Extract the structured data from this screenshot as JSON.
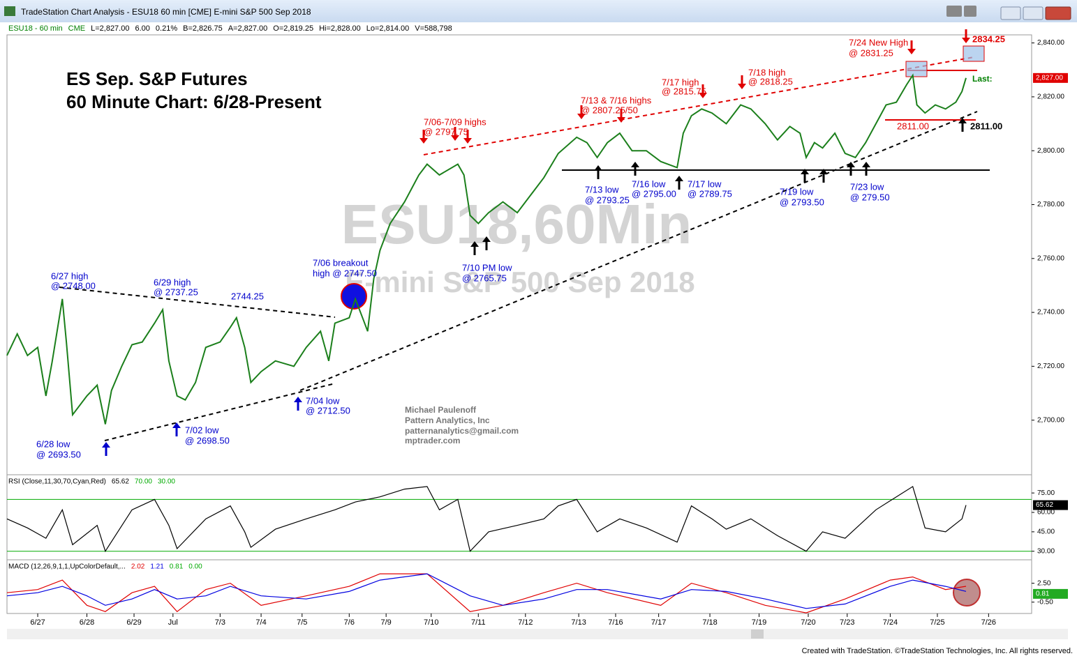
{
  "window": {
    "title": "TradeStation Chart Analysis - ESU18 60 min [CME] E-mini S&P 500 Sep 2018",
    "footer": "Created with TradeStation. ©TradeStation Technologies, Inc. All rights reserved."
  },
  "info_bar": [
    "ESU18 - 60 min",
    "CME",
    "L=2,827.00",
    "6.00",
    "0.21%",
    "B=2,826.75",
    "A=2,827.00",
    "O=2,819.25",
    "Hi=2,828.00",
    "Lo=2,814.00",
    "V=588,798"
  ],
  "watermark": [
    "ESU18,60Min",
    "E-mini S&P 500 Sep 2018"
  ],
  "chart_data": [
    {
      "type": "line",
      "color": "#1b7f1b",
      "annotations": [
        "ES Sep. S&P Futures",
        "60 Minute Chart: 6/28-Present",
        "6/27 high",
        "@ 2748.00",
        "6/28 low",
        "@ 2693.50",
        "6/29 high",
        "@ 2737.25",
        "2744.25",
        "7/02 low",
        "@ 2698.50",
        "7/04 low",
        "@ 2712.50",
        "7/06 breakout",
        "high @ 2747.50",
        "7/10 PM low",
        "@ 2765.75",
        "7/13 low",
        "@ 2793.25",
        "7/16 low",
        "@ 2795.00",
        "7/17 low",
        "@ 2789.75",
        "7/19 low",
        "@ 2793.50",
        "7/23 low",
        "@ 279.50",
        "7/06-7/09 highs",
        "@ 2797.75",
        "7/13 & 7/16 highs",
        "@ 2807.25/50",
        "7/17 high",
        "@ 2815.75",
        "7/18 high",
        "@ 2818.25",
        "7/24 New High",
        "@ 2831.25",
        "2834.25",
        "2811.00",
        "2811.00",
        "Last:",
        "Michael Paulenoff",
        "Pattern Analytics, Inc",
        "patternanalytics@gmail.com",
        "mptrader.com"
      ],
      "xlim": [
        0,
        500
      ],
      "ylim": [
        2680,
        2843
      ],
      "xticks": [
        {
          "value": 15,
          "label": "6/27"
        },
        {
          "value": 39,
          "label": "6/28"
        },
        {
          "value": 62,
          "label": "6/29"
        },
        {
          "value": 81,
          "label": "Jul"
        },
        {
          "value": 104,
          "label": "7/3"
        },
        {
          "value": 124,
          "label": "7/4"
        },
        {
          "value": 144,
          "label": "7/5"
        },
        {
          "value": 167,
          "label": "7/6"
        },
        {
          "value": 185,
          "label": "7/9"
        },
        {
          "value": 207,
          "label": "7/10"
        },
        {
          "value": 230,
          "label": "7/11"
        },
        {
          "value": 253,
          "label": "7/12"
        },
        {
          "value": 279,
          "label": "7/13"
        },
        {
          "value": 297,
          "label": "7/16"
        },
        {
          "value": 318,
          "label": "7/17"
        },
        {
          "value": 343,
          "label": "7/18"
        },
        {
          "value": 367,
          "label": "7/19"
        },
        {
          "value": 391,
          "label": "7/20"
        },
        {
          "value": 410,
          "label": "7/23"
        },
        {
          "value": 431,
          "label": "7/24"
        },
        {
          "value": 454,
          "label": "7/25"
        },
        {
          "value": 479,
          "label": "7/26"
        }
      ],
      "yticks": [
        {
          "value": 2700,
          "label": "2,700.00"
        },
        {
          "value": 2720,
          "label": "2,720.00"
        },
        {
          "value": 2740,
          "label": "2,740.00"
        },
        {
          "value": 2760,
          "label": "2,760.00"
        },
        {
          "value": 2780,
          "label": "2,780.00"
        },
        {
          "value": 2800,
          "label": "2,800.00"
        },
        {
          "value": 2820,
          "label": "2,820.00"
        },
        {
          "value": 2840,
          "label": "2,840.00"
        }
      ],
      "last": {
        "value": 2827,
        "label": "2,827.00",
        "color": "#e00000"
      },
      "series": [
        {
          "color": "#1b7f1b",
          "x": [
            0,
            5,
            10,
            15,
            19,
            22,
            27,
            29,
            32,
            39,
            44,
            48,
            51,
            56,
            61,
            66,
            72,
            76,
            79,
            83,
            87,
            92,
            97,
            104,
            109,
            112,
            116,
            119,
            124,
            131,
            140,
            146,
            153,
            157,
            160,
            167,
            170,
            174,
            176,
            179,
            182,
            187,
            194,
            201,
            205,
            211,
            220,
            223,
            226,
            230,
            235,
            242,
            249,
            255,
            262,
            269,
            278,
            283,
            288,
            293,
            299,
            305,
            312,
            319,
            327,
            330,
            334,
            339,
            344,
            351,
            358,
            363,
            370,
            376,
            382,
            387,
            390,
            394,
            398,
            404,
            409,
            414,
            419,
            424,
            429,
            434,
            439,
            442,
            444,
            448,
            453,
            458,
            463,
            466,
            468
          ],
          "values": [
            2724,
            2732,
            2724,
            2727,
            2709,
            2721.5,
            2745,
            2729,
            2702,
            2709,
            2713,
            2698.5,
            2711,
            2720,
            2728,
            2729,
            2736,
            2741,
            2722,
            2709,
            2707.5,
            2714,
            2727,
            2729,
            2734.5,
            2738,
            2727,
            2714,
            2718,
            2722,
            2720,
            2727,
            2733,
            2722,
            2736,
            2738,
            2745,
            2737,
            2733,
            2752.5,
            2763,
            2773,
            2781,
            2791,
            2795,
            2791,
            2795,
            2791,
            2776,
            2773,
            2777,
            2781,
            2777,
            2783,
            2790,
            2799,
            2805,
            2803,
            2797.5,
            2803,
            2806.5,
            2800,
            2800,
            2796,
            2793.75,
            2806.5,
            2813,
            2815.5,
            2814,
            2810,
            2817,
            2815.5,
            2810,
            2804,
            2809,
            2806.5,
            2797.5,
            2803,
            2801,
            2806.5,
            2799,
            2797.5,
            2803,
            2810,
            2817,
            2818,
            2824.5,
            2828,
            2817,
            2814,
            2817,
            2815.5,
            2818,
            2822,
            2827
          ]
        }
      ]
    },
    {
      "type": "line",
      "xlim": [
        0,
        500
      ],
      "ylim": [
        25,
        88
      ],
      "legend": [
        {
          "text": "RSI (Close,11,30,70,Cyan,Red)",
          "color": "#000000"
        },
        {
          "text": "65.62",
          "color": "#000000"
        },
        {
          "text": "70.00",
          "color": "#00aa00"
        },
        {
          "text": "30.00",
          "color": "#00aa00"
        }
      ],
      "yticks": [
        {
          "value": 30,
          "label": "30.00"
        },
        {
          "value": 45,
          "label": "45.00"
        },
        {
          "value": 60,
          "label": "60.00"
        },
        {
          "value": 75,
          "label": "75.00"
        }
      ],
      "levels": [
        {
          "value": 70,
          "color": "#00aa00"
        },
        {
          "value": 30,
          "color": "#00aa00"
        }
      ],
      "last": {
        "value": 65.62,
        "label": "65.62",
        "color": "#000000"
      },
      "series": [
        {
          "color": "#000000",
          "x": [
            0,
            10,
            19,
            27,
            32,
            44,
            48,
            61,
            72,
            79,
            83,
            97,
            109,
            116,
            119,
            131,
            146,
            160,
            170,
            182,
            194,
            205,
            211,
            220,
            226,
            235,
            249,
            262,
            269,
            278,
            288,
            299,
            312,
            327,
            334,
            344,
            351,
            363,
            376,
            390,
            398,
            409,
            424,
            434,
            442,
            448,
            458,
            466,
            468
          ],
          "values": [
            55,
            48,
            40,
            62,
            35,
            50,
            30,
            62,
            70,
            50,
            32,
            55,
            65,
            45,
            33,
            47,
            55,
            62,
            68,
            72,
            78,
            80,
            62,
            70,
            30,
            45,
            50,
            55,
            65,
            70,
            45,
            55,
            48,
            37,
            65,
            55,
            47,
            55,
            42,
            30,
            45,
            40,
            62,
            72,
            80,
            48,
            45,
            55,
            65.62
          ]
        }
      ]
    },
    {
      "type": "line",
      "xlim": [
        0,
        500
      ],
      "ylim": [
        -2.3,
        6
      ],
      "legend": [
        {
          "text": "MACD (12,26,9,1,1,UpColorDefault,...",
          "color": "#000000"
        },
        {
          "text": "2.02",
          "color": "#e00000"
        },
        {
          "text": "1.21",
          "color": "#0000e0"
        },
        {
          "text": "0.81",
          "color": "#00aa00"
        },
        {
          "text": "0.00",
          "color": "#00aa00"
        }
      ],
      "yticks": [
        {
          "value": -0.5,
          "label": "-0.50"
        },
        {
          "value": 2.5,
          "label": "2.50"
        }
      ],
      "last": {
        "value": 0.81,
        "label": "0.81",
        "color": "#22aa22"
      },
      "series": [
        {
          "color": "#e00000",
          "x": [
            0,
            15,
            27,
            39,
            48,
            61,
            72,
            83,
            97,
            109,
            124,
            146,
            167,
            182,
            205,
            226,
            242,
            262,
            278,
            293,
            319,
            334,
            351,
            370,
            390,
            409,
            431,
            442,
            458,
            468
          ],
          "values": [
            1,
            1.5,
            3,
            -1,
            -2,
            1,
            2,
            -2,
            1.5,
            2.5,
            -1,
            0.5,
            2,
            4,
            4,
            -2,
            -1,
            1,
            2.5,
            1,
            -1,
            2.5,
            1,
            -1,
            -2.2,
            0,
            3,
            3.5,
            1.5,
            2.02
          ]
        },
        {
          "color": "#0000e0",
          "x": [
            0,
            15,
            27,
            39,
            48,
            61,
            72,
            83,
            97,
            109,
            124,
            146,
            167,
            182,
            205,
            226,
            242,
            262,
            278,
            293,
            319,
            334,
            351,
            370,
            390,
            409,
            431,
            442,
            458,
            468
          ],
          "values": [
            0.5,
            1,
            2,
            0.5,
            -1,
            0,
            1.5,
            0,
            0.5,
            2,
            0.5,
            0,
            1.2,
            3,
            4,
            0.5,
            -1,
            0,
            1.5,
            1.5,
            0,
            1.5,
            1.2,
            0,
            -1.5,
            -0.8,
            2,
            3,
            2,
            1.21
          ]
        }
      ]
    }
  ]
}
